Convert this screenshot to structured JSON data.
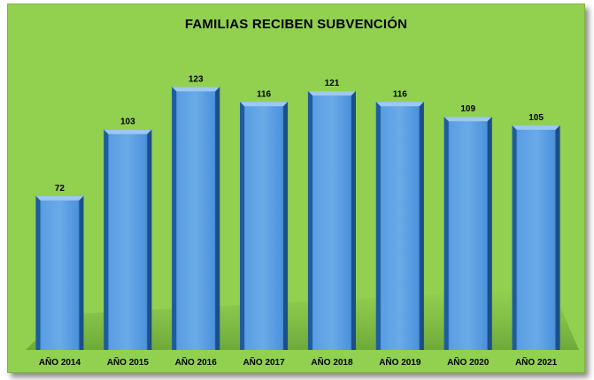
{
  "chart_data": {
    "type": "bar",
    "title": "FAMILIAS RECIBEN SUBVENCIÓN",
    "categories": [
      "AÑO 2014",
      "AÑO 2015",
      "AÑO 2016",
      "AÑO 2017",
      "AÑO 2018",
      "AÑO 2019",
      "AÑO 2020",
      "AÑO 2021"
    ],
    "values": [
      72,
      103,
      123,
      116,
      121,
      116,
      109,
      105
    ],
    "ylim": [
      0,
      130
    ],
    "grid": false,
    "legend": "none",
    "colors": {
      "background": "#92d050",
      "bar_face": "#4a90d9",
      "bar_light": "#7fb6ec",
      "bar_dark": "#1f5c9e",
      "bar_top": "#9cc8f2"
    }
  }
}
